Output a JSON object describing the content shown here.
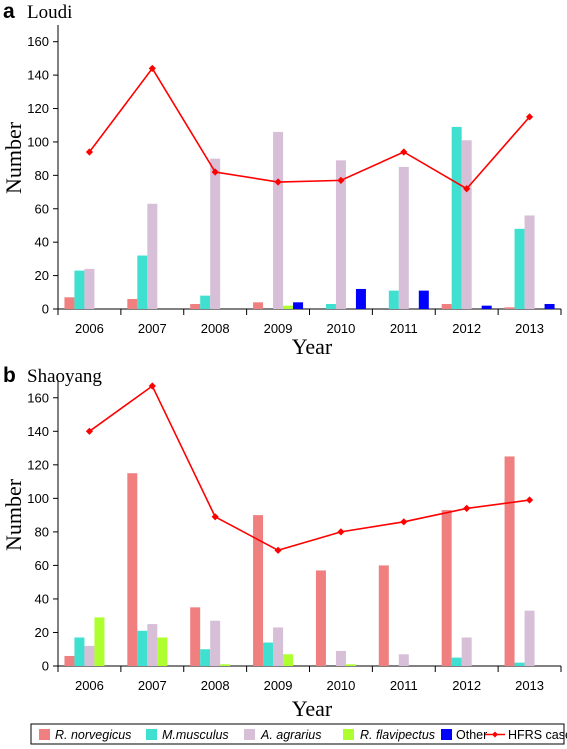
{
  "legend": {
    "items": [
      {
        "label": "R. norvegicus",
        "color": "#f08080",
        "italic": true,
        "kind": "box"
      },
      {
        "label": "M.musculus",
        "color": "#40e0d0",
        "italic": true,
        "kind": "box"
      },
      {
        "label": "A. agrarius",
        "color": "#d8bfd8",
        "italic": true,
        "kind": "box"
      },
      {
        "label": "R. flavipectus",
        "color": "#adff2f",
        "italic": true,
        "kind": "box"
      },
      {
        "label": "Other",
        "color": "#0000ff",
        "italic": false,
        "kind": "box"
      },
      {
        "label": "HFRS  cases",
        "color": "#ff0000",
        "italic": false,
        "kind": "line"
      }
    ]
  },
  "chart_data": [
    {
      "type": "bar",
      "panel_letter": "a",
      "title": "Loudi",
      "xlabel": "Year",
      "ylabel": "Number",
      "ylim": [
        0,
        170
      ],
      "yticks": [
        0,
        20,
        40,
        60,
        80,
        100,
        120,
        140,
        160
      ],
      "categories": [
        "2006",
        "2007",
        "2008",
        "2009",
        "2010",
        "2011",
        "2012",
        "2013"
      ],
      "series": [
        {
          "name": "R. norvegicus",
          "color": "#f08080",
          "values": [
            7,
            6,
            3,
            4,
            0,
            0,
            3,
            1
          ]
        },
        {
          "name": "M.musculus",
          "color": "#40e0d0",
          "values": [
            23,
            32,
            8,
            0,
            3,
            11,
            109,
            48
          ]
        },
        {
          "name": "A. agrarius",
          "color": "#d8bfd8",
          "values": [
            24,
            63,
            90,
            106,
            89,
            85,
            101,
            56
          ]
        },
        {
          "name": "R. flavipectus",
          "color": "#adff2f",
          "values": [
            0,
            0,
            0,
            2,
            0,
            0,
            0,
            0
          ]
        },
        {
          "name": "Other",
          "color": "#0000ff",
          "values": [
            0,
            0,
            0,
            4,
            12,
            11,
            2,
            3
          ]
        }
      ],
      "line": {
        "name": "HFRS  cases",
        "color": "#ff0000",
        "values": [
          94,
          144,
          82,
          76,
          77,
          94,
          72,
          115
        ]
      },
      "grid": false
    },
    {
      "type": "bar",
      "panel_letter": "b",
      "title": "Shaoyang",
      "xlabel": "Year",
      "ylabel": "Number",
      "ylim": [
        0,
        170
      ],
      "yticks": [
        0,
        20,
        40,
        60,
        80,
        100,
        120,
        140,
        160
      ],
      "categories": [
        "2006",
        "2007",
        "2008",
        "2009",
        "2010",
        "2011",
        "2012",
        "2013"
      ],
      "series": [
        {
          "name": "R. norvegicus",
          "color": "#f08080",
          "values": [
            6,
            115,
            35,
            90,
            57,
            60,
            93,
            125
          ]
        },
        {
          "name": "M.musculus",
          "color": "#40e0d0",
          "values": [
            17,
            21,
            10,
            14,
            0,
            0,
            5,
            2
          ]
        },
        {
          "name": "A. agrarius",
          "color": "#d8bfd8",
          "values": [
            12,
            25,
            27,
            23,
            9,
            7,
            17,
            33
          ]
        },
        {
          "name": "R. flavipectus",
          "color": "#adff2f",
          "values": [
            29,
            17,
            1,
            7,
            1,
            0,
            0,
            0
          ]
        },
        {
          "name": "Other",
          "color": "#0000ff",
          "values": [
            0,
            0,
            0,
            0,
            0,
            0,
            0,
            0
          ]
        }
      ],
      "line": {
        "name": "HFRS  cases",
        "color": "#ff0000",
        "values": [
          140,
          167,
          89,
          69,
          80,
          86,
          94,
          99
        ]
      },
      "grid": false
    }
  ]
}
